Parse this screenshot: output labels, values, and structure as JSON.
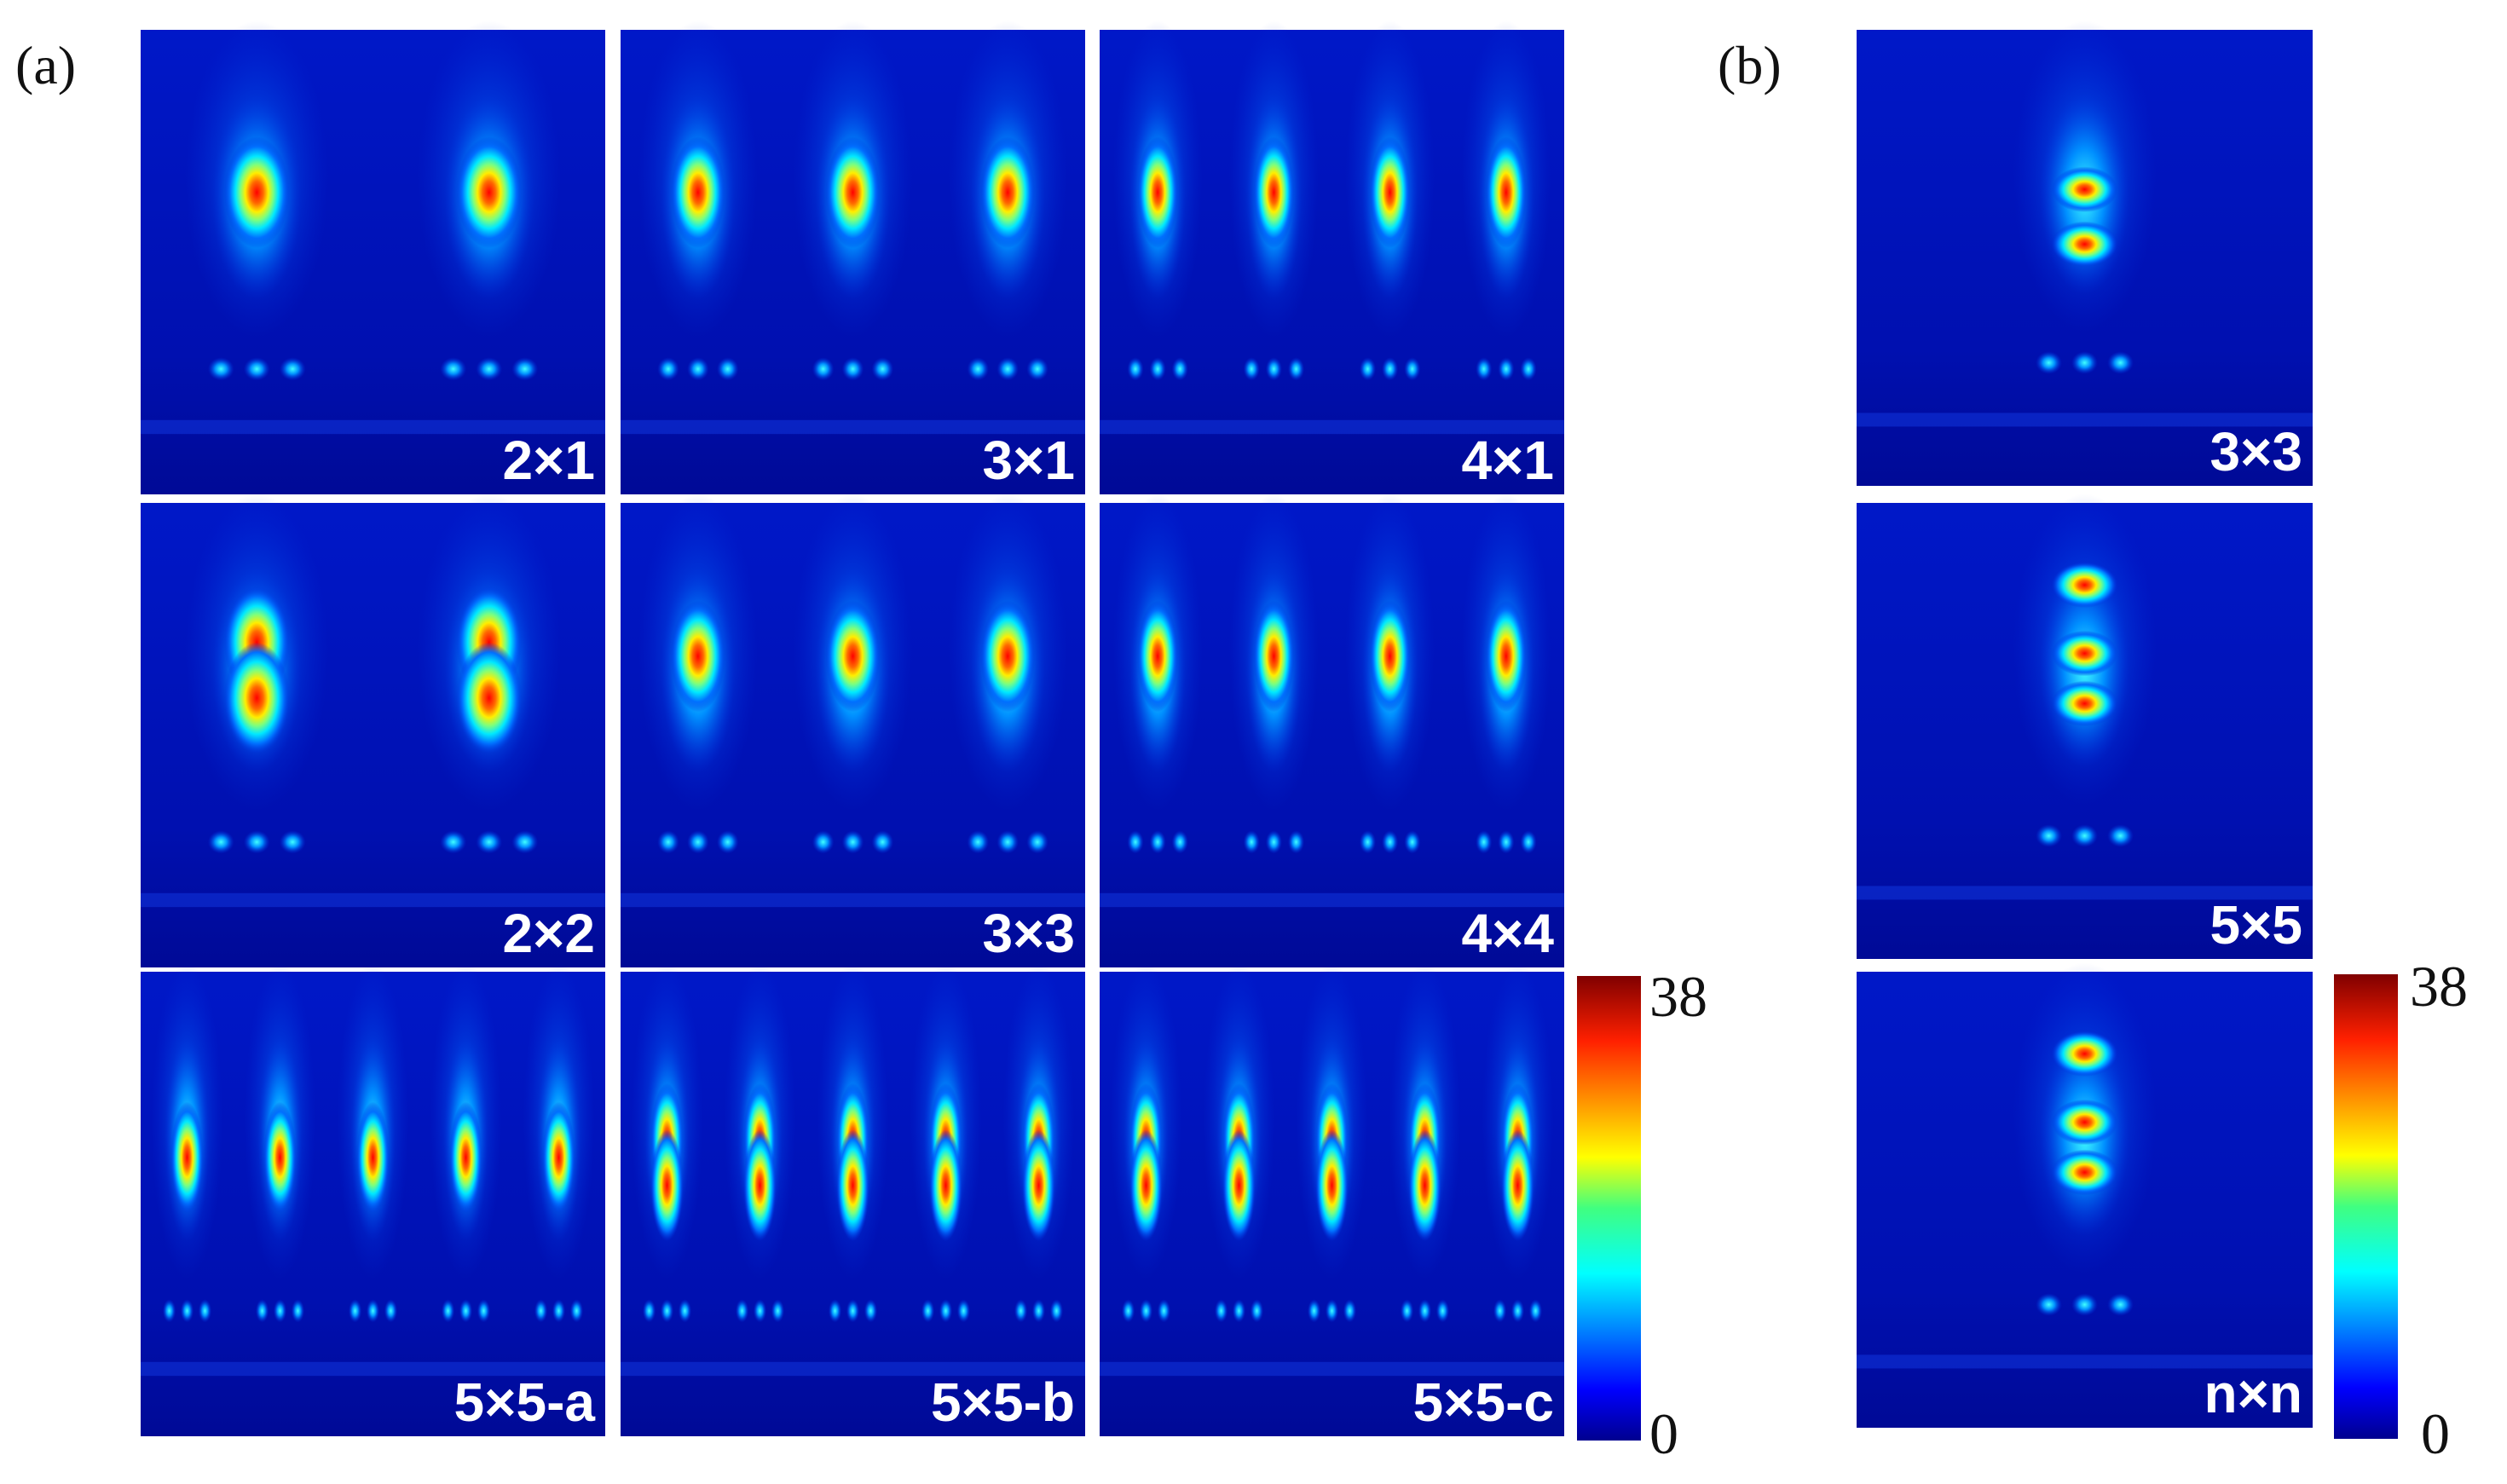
{
  "figure": {
    "panel_a_label": "(a)",
    "panel_b_label": "(b)"
  },
  "panel_a": {
    "tiles": [
      {
        "label": "2×1",
        "columns": 2,
        "peaks": [
          0.35
        ]
      },
      {
        "label": "3×1",
        "columns": 3,
        "peaks": [
          0.35
        ]
      },
      {
        "label": "4×1",
        "columns": 4,
        "peaks": [
          0.35
        ]
      },
      {
        "label": "2×2",
        "columns": 2,
        "peaks": [
          0.3,
          0.42
        ]
      },
      {
        "label": "3×3",
        "columns": 3,
        "peaks": [
          0.33
        ]
      },
      {
        "label": "4×4",
        "columns": 4,
        "peaks": [
          0.33
        ]
      },
      {
        "label": "5×5-a",
        "columns": 5,
        "peaks": [
          0.4
        ]
      },
      {
        "label": "5×5-b",
        "columns": 5,
        "peaks": [
          0.36,
          0.46
        ]
      },
      {
        "label": "5×5-c",
        "columns": 5,
        "peaks": [
          0.36,
          0.46
        ]
      }
    ],
    "colorbar": {
      "max_label": "38",
      "min_label": "0"
    }
  },
  "panel_b": {
    "tiles": [
      {
        "label": "3×3",
        "peaks": [
          0.35,
          0.47
        ]
      },
      {
        "label": "5×5",
        "peaks": [
          0.18,
          0.33,
          0.44
        ]
      },
      {
        "label": "n×n",
        "peaks": [
          0.18,
          0.33,
          0.44
        ]
      }
    ],
    "colorbar": {
      "max_label": "38",
      "min_label": "0"
    }
  },
  "colormap": {
    "name": "jet",
    "range": [
      0,
      38
    ],
    "stops": [
      "#00008f",
      "#0000ff",
      "#0080ff",
      "#00ffff",
      "#80ff80",
      "#ffff00",
      "#ff8000",
      "#ff0000",
      "#800000"
    ]
  }
}
